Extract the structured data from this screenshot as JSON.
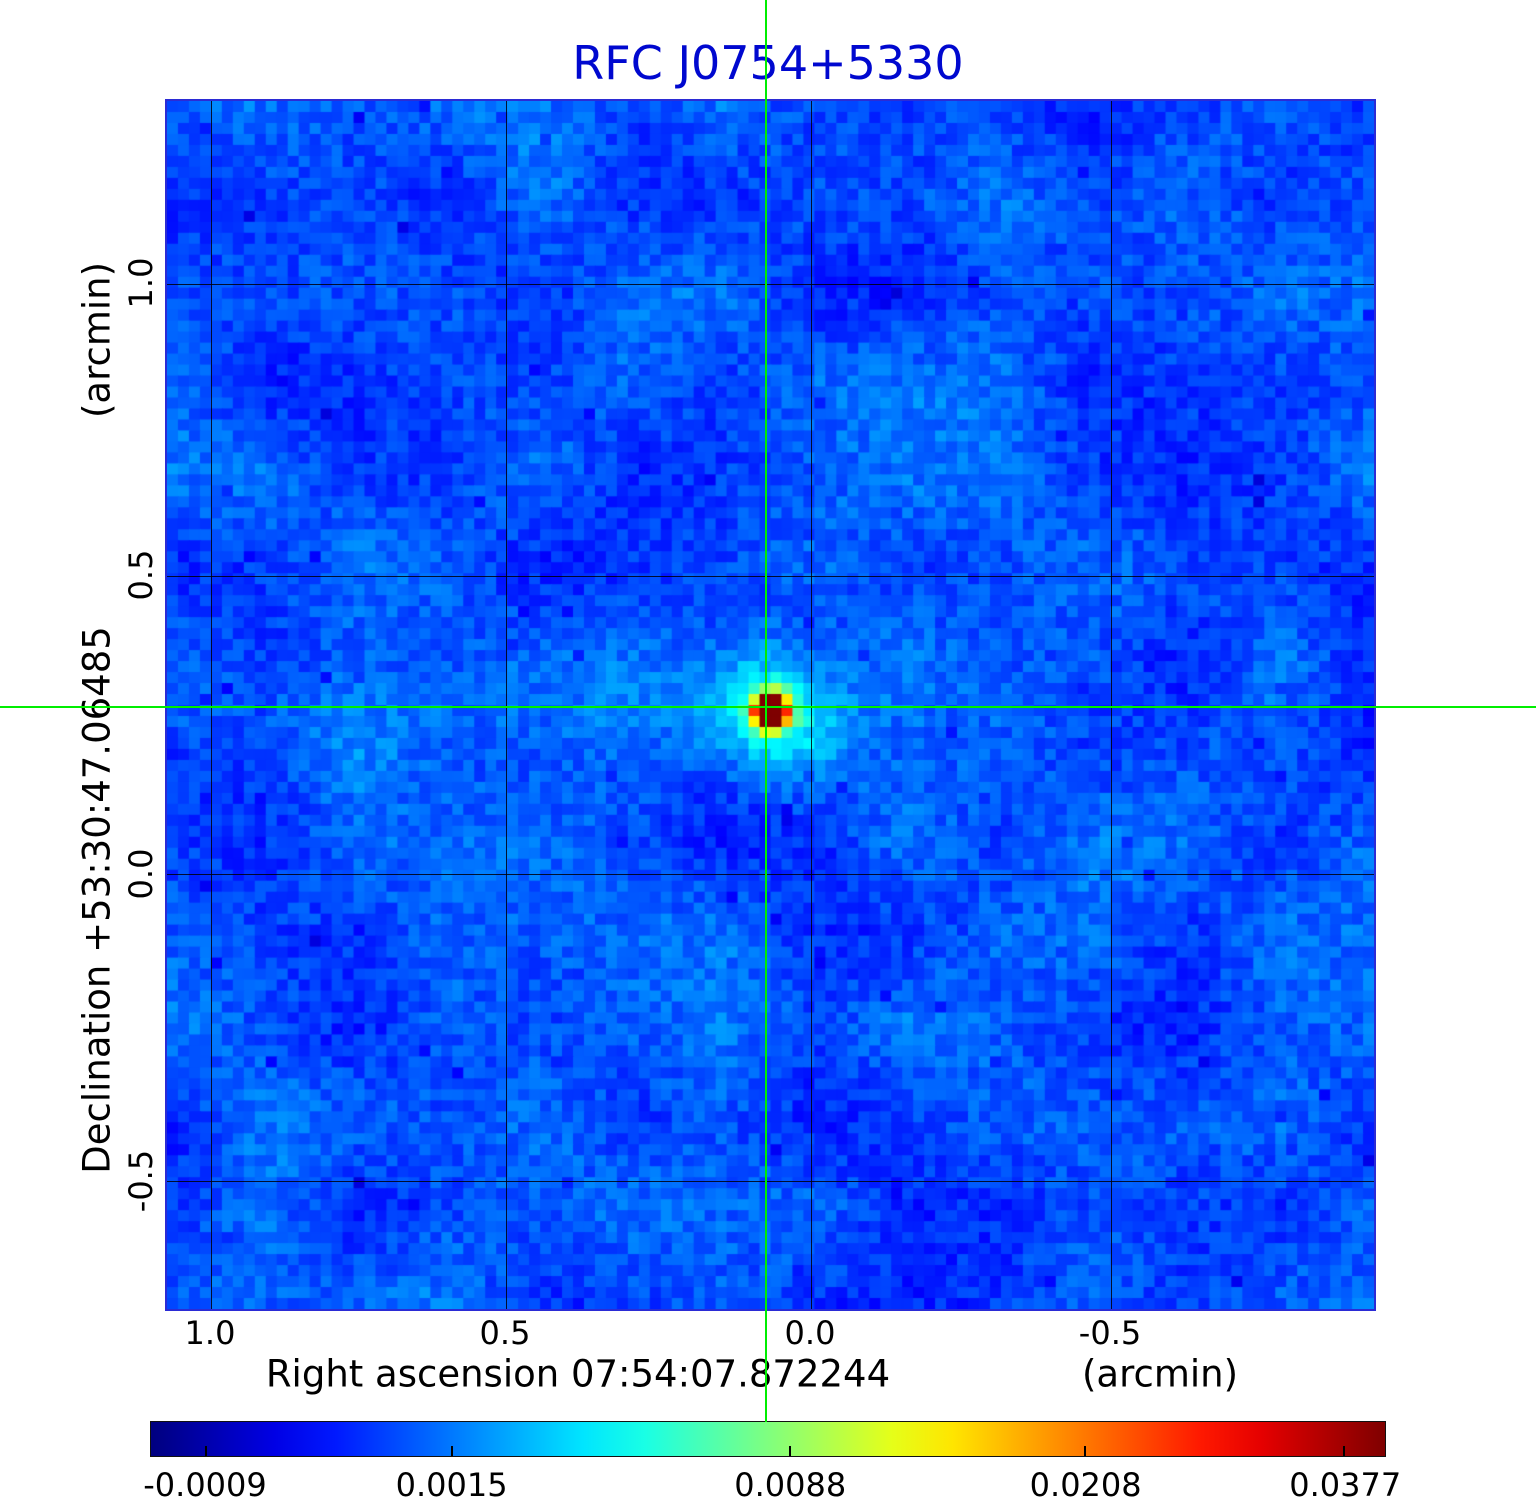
{
  "title": "RFC J0754+5330",
  "title_color": "#0008cf",
  "axes": {
    "x_label": "Right ascension  07:54:07.872244",
    "x_unit": "(arcmin)",
    "y_label": "Declination  +53:30:47.06485",
    "y_unit": "(arcmin)",
    "x_ticks": [
      "1.0",
      "0.5",
      "0.0",
      "-0.5"
    ],
    "y_ticks": [
      "1.0",
      "0.5",
      "0.0",
      "-0.5"
    ]
  },
  "colorbar": {
    "ticks": [
      "-0.0009",
      "0.0015",
      "0.0088",
      "0.0208",
      "0.0377"
    ],
    "colormap": "jet",
    "end_colors": [
      "#000080",
      "#800000"
    ]
  },
  "crosshair_color": "#00ee00",
  "chart_data": {
    "type": "heatmap",
    "title": "RFC J0754+5330",
    "xlabel": "Right ascension  07:54:07.872244 (arcmin)",
    "ylabel": "Declination  +53:30:47.06485 (arcmin)",
    "x_ticks": [
      1.0,
      0.5,
      0.0,
      -0.5
    ],
    "y_ticks": [
      1.0,
      0.5,
      0.0,
      -0.5
    ],
    "x_range_arcmin": [
      1.08,
      -0.95
    ],
    "y_range_arcmin": [
      -0.72,
      1.31
    ],
    "grid": true,
    "colormap": "jet",
    "intensity_scale": "nonlinear",
    "colorbar_ticks": [
      -0.0009,
      0.0015,
      0.0088,
      0.0208,
      0.0377
    ],
    "background_level_range": [
      -0.0009,
      0.004
    ],
    "peak_source": {
      "x_arcmin": 0.07,
      "y_arcmin": 0.28,
      "value_peak": 0.0377,
      "description": "compact bright point source at crosshair center with yellow-green halo"
    },
    "crosshair": {
      "x_arcmin": 0.07,
      "y_arcmin": 0.28,
      "color": "#00ee00"
    }
  }
}
